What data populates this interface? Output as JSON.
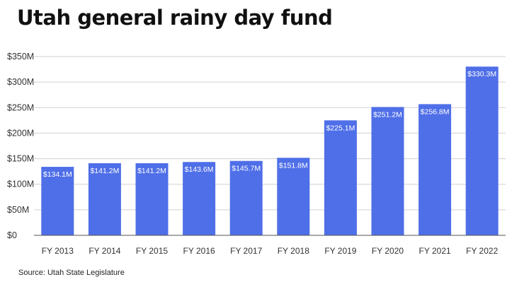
{
  "title": "Utah general rainy day fund",
  "source": "Source: Utah State Legislature",
  "colors": {
    "bar": "#4f6fe8",
    "grid": "#d0d0d0",
    "axis": "#555555",
    "text": "#333333",
    "label": "#ffffff"
  },
  "chart_data": {
    "type": "bar",
    "categories": [
      "FY 2013",
      "FY 2014",
      "FY 2015",
      "FY 2016",
      "FY 2017",
      "FY 2018",
      "FY 2019",
      "FY 2020",
      "FY 2021",
      "FY 2022"
    ],
    "values": [
      134.1,
      141.2,
      141.2,
      143.6,
      145.7,
      151.8,
      225.1,
      251.2,
      256.8,
      330.3
    ],
    "value_labels": [
      "$134.1M",
      "$141.2M",
      "$141.2M",
      "$143.6M",
      "$145.7M",
      "$151.8M",
      "$225.1M",
      "$251.2M",
      "$256.8M",
      "$330.3M"
    ],
    "yticks": [
      0,
      50,
      100,
      150,
      200,
      250,
      300,
      350
    ],
    "ytick_labels": [
      "$0",
      "$50M",
      "$100M",
      "$150M",
      "$200M",
      "$250M",
      "$300M",
      "$350M"
    ],
    "ylim": [
      0,
      350
    ],
    "grid": true,
    "xlabel": "",
    "ylabel": ""
  }
}
